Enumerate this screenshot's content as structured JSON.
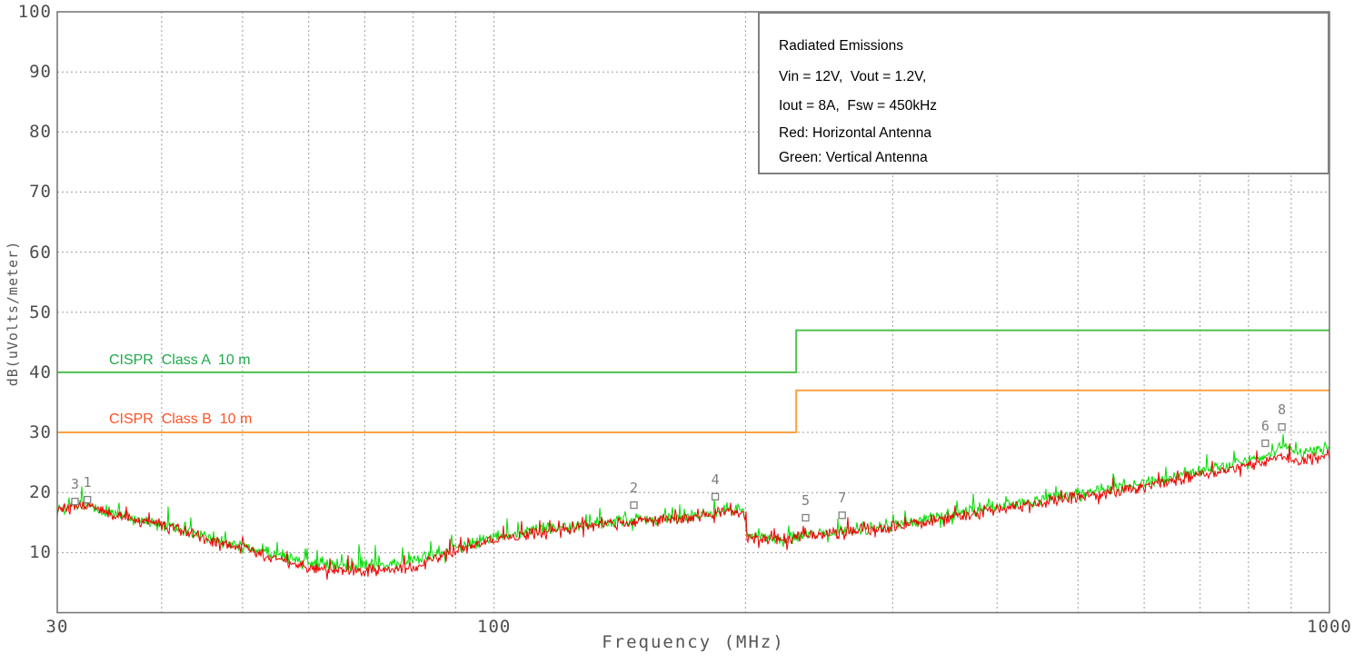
{
  "title_box": {
    "lines": [
      "Radiated Emissions",
      "Vin = 12V,  Vout = 1.2V,",
      "Iout = 8A,  Fsw = 450kHz",
      "Red: Horizontal Antenna",
      "Green: Vertical Antenna"
    ]
  },
  "chart_data": {
    "type": "line",
    "title": "Radiated Emissions",
    "xlabel": "Frequency (MHz)",
    "ylabel": "dB(uVolts/meter)",
    "x_scale": "log",
    "xlim": [
      30,
      1000
    ],
    "ylim": [
      0,
      100
    ],
    "grid": "dotted",
    "x_tick_labels": [
      "30",
      "100",
      "1000"
    ],
    "x_tick_values": [
      30,
      100,
      1000
    ],
    "x_gridlines": [
      40,
      50,
      60,
      70,
      80,
      90,
      100,
      200,
      300,
      400,
      500,
      600,
      700,
      800,
      900
    ],
    "y_tick_labels": [
      "100",
      "90",
      "80",
      "70",
      "60",
      "50",
      "40",
      "30",
      "20",
      "10"
    ],
    "y_tick_values": [
      100,
      90,
      80,
      70,
      60,
      50,
      40,
      30,
      20,
      10
    ],
    "y_gridlines": [
      10,
      20,
      30,
      40,
      50,
      60,
      70,
      80,
      90
    ],
    "limit_lines": [
      {
        "label": "CISPR  Class A  10 m",
        "points": [
          [
            30,
            40
          ],
          [
            230,
            40
          ],
          [
            230,
            47
          ],
          [
            1000,
            47
          ]
        ],
        "line_color": "#4ec04e",
        "label_color": "#1fa94c",
        "label_anchor": {
          "f": 34.6,
          "db": 42.0
        }
      },
      {
        "label": "CISPR  Class B  10 m",
        "points": [
          [
            30,
            30
          ],
          [
            230,
            30
          ],
          [
            230,
            37
          ],
          [
            1000,
            37
          ]
        ],
        "line_color": "#ffa043",
        "label_color": "#ff5224",
        "label_anchor": {
          "f": 34.6,
          "db": 32.1
        }
      }
    ],
    "series": [
      {
        "name": "Horizontal Antenna",
        "color": "#ee0000",
        "noise_db": 1.15,
        "spike_prob": 0.07,
        "spike_db": 2.2,
        "seed": 7,
        "points": [
          [
            30,
            17.2
          ],
          [
            31,
            17.6
          ],
          [
            32.6,
            17.6
          ],
          [
            34,
            16.8
          ],
          [
            36,
            15.9
          ],
          [
            38,
            15.1
          ],
          [
            40,
            14.5
          ],
          [
            43,
            13.3
          ],
          [
            46,
            12.1
          ],
          [
            50,
            10.6
          ],
          [
            55,
            8.8
          ],
          [
            60,
            7.6
          ],
          [
            65,
            7.0
          ],
          [
            70,
            6.9
          ],
          [
            75,
            7.1
          ],
          [
            80,
            7.7
          ],
          [
            85,
            9.0
          ],
          [
            90,
            10.2
          ],
          [
            95,
            11.2
          ],
          [
            100,
            12.1
          ],
          [
            110,
            13.1
          ],
          [
            120,
            13.9
          ],
          [
            130,
            14.5
          ],
          [
            140,
            14.9
          ],
          [
            150,
            15.2
          ],
          [
            160,
            15.4
          ],
          [
            170,
            15.7
          ],
          [
            180,
            16.2
          ],
          [
            190,
            16.9
          ],
          [
            199,
            16.8
          ],
          [
            201,
            12.5
          ],
          [
            210,
            12.1
          ],
          [
            220,
            12.2
          ],
          [
            230,
            12.5
          ],
          [
            250,
            13.1
          ],
          [
            270,
            13.7
          ],
          [
            300,
            14.3
          ],
          [
            350,
            15.8
          ],
          [
            400,
            17.1
          ],
          [
            450,
            18.2
          ],
          [
            500,
            19.3
          ],
          [
            550,
            20.2
          ],
          [
            600,
            21.0
          ],
          [
            650,
            21.9
          ],
          [
            700,
            22.8
          ],
          [
            750,
            23.6
          ],
          [
            800,
            24.6
          ],
          [
            830,
            25.0
          ],
          [
            860,
            25.8
          ],
          [
            875,
            26.3
          ],
          [
            890,
            25.7
          ],
          [
            910,
            25.2
          ],
          [
            940,
            25.5
          ],
          [
            970,
            25.8
          ],
          [
            1000,
            26.2
          ]
        ]
      },
      {
        "name": "Vertical Antenna",
        "color": "#00dd00",
        "noise_db": 1.25,
        "spike_prob": 0.1,
        "spike_db": 2.6,
        "seed": 13,
        "points": [
          [
            30,
            17.4
          ],
          [
            31,
            17.8
          ],
          [
            32.6,
            17.8
          ],
          [
            34,
            17.0
          ],
          [
            36,
            16.1
          ],
          [
            38,
            15.3
          ],
          [
            40,
            14.7
          ],
          [
            43,
            13.5
          ],
          [
            46,
            12.3
          ],
          [
            50,
            11.0
          ],
          [
            55,
            9.5
          ],
          [
            60,
            8.4
          ],
          [
            65,
            8.0
          ],
          [
            70,
            7.9
          ],
          [
            75,
            8.1
          ],
          [
            80,
            8.7
          ],
          [
            85,
            9.6
          ],
          [
            90,
            10.7
          ],
          [
            95,
            11.6
          ],
          [
            100,
            12.4
          ],
          [
            110,
            13.4
          ],
          [
            120,
            14.2
          ],
          [
            130,
            14.8
          ],
          [
            140,
            15.2
          ],
          [
            150,
            15.5
          ],
          [
            160,
            15.7
          ],
          [
            170,
            16.0
          ],
          [
            180,
            16.5
          ],
          [
            190,
            17.2
          ],
          [
            199,
            17.1
          ],
          [
            201,
            12.7
          ],
          [
            210,
            12.3
          ],
          [
            220,
            12.4
          ],
          [
            230,
            12.7
          ],
          [
            250,
            13.3
          ],
          [
            270,
            13.9
          ],
          [
            300,
            14.6
          ],
          [
            350,
            16.2
          ],
          [
            400,
            17.6
          ],
          [
            450,
            18.7
          ],
          [
            500,
            19.8
          ],
          [
            550,
            20.8
          ],
          [
            600,
            21.7
          ],
          [
            650,
            22.6
          ],
          [
            700,
            23.5
          ],
          [
            750,
            24.4
          ],
          [
            800,
            25.4
          ],
          [
            830,
            25.9
          ],
          [
            860,
            26.9
          ],
          [
            875,
            27.9
          ],
          [
            890,
            27.0
          ],
          [
            910,
            26.4
          ],
          [
            940,
            26.7
          ],
          [
            970,
            27.0
          ],
          [
            1000,
            27.3
          ]
        ]
      }
    ],
    "markers": [
      {
        "label": "1",
        "f": 32.6,
        "db": 18.8
      },
      {
        "label": "2",
        "f": 147,
        "db": 17.9
      },
      {
        "label": "3",
        "f": 31.5,
        "db": 18.5
      },
      {
        "label": "4",
        "f": 184,
        "db": 19.3
      },
      {
        "label": "5",
        "f": 236,
        "db": 15.8
      },
      {
        "label": "6",
        "f": 838,
        "db": 28.2
      },
      {
        "label": "7",
        "f": 261,
        "db": 16.2
      },
      {
        "label": "8",
        "f": 877,
        "db": 30.9
      }
    ],
    "colors": {
      "grid": "#9c9c9c",
      "border": "#707070",
      "axis_text": "#4d4d4d",
      "marker": "#808080"
    }
  }
}
